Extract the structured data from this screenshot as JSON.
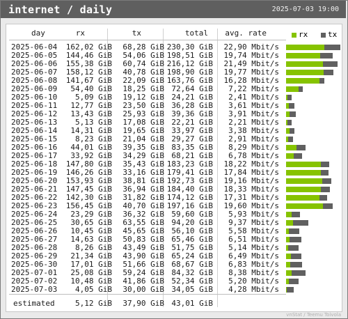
{
  "header": {
    "title": "internet / daily",
    "date": "2025-07-03 19:00"
  },
  "columns": {
    "day": "day",
    "rx": "rx",
    "tx": "tx",
    "total": "total",
    "rate": "avg. rate"
  },
  "legend": {
    "rx": "rx",
    "tx": "tx"
  },
  "colors": {
    "rx": "#86c300",
    "tx": "#606060"
  },
  "rows": [
    {
      "day": "2025-06-04",
      "rx": "162,02 GiB",
      "tx": "68,28 GiB",
      "total": "230,30 GiB",
      "rate": "22,90 Mbit/s",
      "rx_val": 162.02,
      "tx_val": 68.28
    },
    {
      "day": "2025-06-05",
      "rx": "144,46 GiB",
      "tx": "54,06 GiB",
      "total": "198,51 GiB",
      "rate": "19,74 Mbit/s",
      "rx_val": 144.46,
      "tx_val": 54.06
    },
    {
      "day": "2025-06-06",
      "rx": "155,38 GiB",
      "tx": "60,74 GiB",
      "total": "216,12 GiB",
      "rate": "21,49 Mbit/s",
      "rx_val": 155.38,
      "tx_val": 60.74
    },
    {
      "day": "2025-06-07",
      "rx": "158,12 GiB",
      "tx": "40,78 GiB",
      "total": "198,90 GiB",
      "rate": "19,77 Mbit/s",
      "rx_val": 158.12,
      "tx_val": 40.78
    },
    {
      "day": "2025-06-08",
      "rx": "141,67 GiB",
      "tx": "22,09 GiB",
      "total": "163,76 GiB",
      "rate": "16,28 Mbit/s",
      "rx_val": 141.67,
      "tx_val": 22.09
    },
    {
      "day": "2025-06-09",
      "rx": "54,40 GiB",
      "tx": "18,25 GiB",
      "total": "72,64 GiB",
      "rate": "7,22 Mbit/s",
      "rx_val": 54.4,
      "tx_val": 18.25
    },
    {
      "day": "2025-06-10",
      "rx": "5,09 GiB",
      "tx": "19,12 GiB",
      "total": "24,21 GiB",
      "rate": "2,41 Mbit/s",
      "rx_val": 5.09,
      "tx_val": 19.12
    },
    {
      "day": "2025-06-11",
      "rx": "12,77 GiB",
      "tx": "23,50 GiB",
      "total": "36,28 GiB",
      "rate": "3,61 Mbit/s",
      "rx_val": 12.77,
      "tx_val": 23.5
    },
    {
      "day": "2025-06-12",
      "rx": "13,43 GiB",
      "tx": "25,93 GiB",
      "total": "39,36 GiB",
      "rate": "3,91 Mbit/s",
      "rx_val": 13.43,
      "tx_val": 25.93
    },
    {
      "day": "2025-06-13",
      "rx": "5,13 GiB",
      "tx": "17,08 GiB",
      "total": "22,21 GiB",
      "rate": "2,21 Mbit/s",
      "rx_val": 5.13,
      "tx_val": 17.08
    },
    {
      "day": "2025-06-14",
      "rx": "14,31 GiB",
      "tx": "19,65 GiB",
      "total": "33,97 GiB",
      "rate": "3,38 Mbit/s",
      "rx_val": 14.31,
      "tx_val": 19.65
    },
    {
      "day": "2025-06-15",
      "rx": "8,23 GiB",
      "tx": "21,04 GiB",
      "total": "29,27 GiB",
      "rate": "2,91 Mbit/s",
      "rx_val": 8.23,
      "tx_val": 21.04
    },
    {
      "day": "2025-06-16",
      "rx": "44,01 GiB",
      "tx": "39,35 GiB",
      "total": "83,35 GiB",
      "rate": "8,29 Mbit/s",
      "rx_val": 44.01,
      "tx_val": 39.35
    },
    {
      "day": "2025-06-17",
      "rx": "33,92 GiB",
      "tx": "34,29 GiB",
      "total": "68,21 GiB",
      "rate": "6,78 Mbit/s",
      "rx_val": 33.92,
      "tx_val": 34.29
    },
    {
      "day": "2025-06-18",
      "rx": "147,80 GiB",
      "tx": "35,43 GiB",
      "total": "183,23 GiB",
      "rate": "18,22 Mbit/s",
      "rx_val": 147.8,
      "tx_val": 35.43
    },
    {
      "day": "2025-06-19",
      "rx": "146,26 GiB",
      "tx": "33,16 GiB",
      "total": "179,41 GiB",
      "rate": "17,84 Mbit/s",
      "rx_val": 146.26,
      "tx_val": 33.16
    },
    {
      "day": "2025-06-20",
      "rx": "153,93 GiB",
      "tx": "38,81 GiB",
      "total": "192,73 GiB",
      "rate": "19,16 Mbit/s",
      "rx_val": 153.93,
      "tx_val": 38.81
    },
    {
      "day": "2025-06-21",
      "rx": "147,45 GiB",
      "tx": "36,94 GiB",
      "total": "184,40 GiB",
      "rate": "18,33 Mbit/s",
      "rx_val": 147.45,
      "tx_val": 36.94
    },
    {
      "day": "2025-06-22",
      "rx": "142,30 GiB",
      "tx": "31,82 GiB",
      "total": "174,12 GiB",
      "rate": "17,31 Mbit/s",
      "rx_val": 142.3,
      "tx_val": 31.82
    },
    {
      "day": "2025-06-23",
      "rx": "156,45 GiB",
      "tx": "40,70 GiB",
      "total": "197,16 GiB",
      "rate": "19,60 Mbit/s",
      "rx_val": 156.45,
      "tx_val": 40.7
    },
    {
      "day": "2025-06-24",
      "rx": "23,29 GiB",
      "tx": "36,32 GiB",
      "total": "59,60 GiB",
      "rate": "5,93 Mbit/s",
      "rx_val": 23.29,
      "tx_val": 36.32
    },
    {
      "day": "2025-06-25",
      "rx": "30,65 GiB",
      "tx": "63,55 GiB",
      "total": "94,20 GiB",
      "rate": "9,37 Mbit/s",
      "rx_val": 30.65,
      "tx_val": 63.55
    },
    {
      "day": "2025-06-26",
      "rx": "10,45 GiB",
      "tx": "45,65 GiB",
      "total": "56,10 GiB",
      "rate": "5,58 Mbit/s",
      "rx_val": 10.45,
      "tx_val": 45.65
    },
    {
      "day": "2025-06-27",
      "rx": "14,63 GiB",
      "tx": "50,83 GiB",
      "total": "65,46 GiB",
      "rate": "6,51 Mbit/s",
      "rx_val": 14.63,
      "tx_val": 50.83
    },
    {
      "day": "2025-06-28",
      "rx": "8,26 GiB",
      "tx": "43,49 GiB",
      "total": "51,75 GiB",
      "rate": "5,14 Mbit/s",
      "rx_val": 8.26,
      "tx_val": 43.49
    },
    {
      "day": "2025-06-29",
      "rx": "21,34 GiB",
      "tx": "43,90 GiB",
      "total": "65,24 GiB",
      "rate": "6,49 Mbit/s",
      "rx_val": 21.34,
      "tx_val": 43.9
    },
    {
      "day": "2025-06-30",
      "rx": "17,01 GiB",
      "tx": "51,66 GiB",
      "total": "68,67 GiB",
      "rate": "6,83 Mbit/s",
      "rx_val": 17.01,
      "tx_val": 51.66
    },
    {
      "day": "2025-07-01",
      "rx": "25,08 GiB",
      "tx": "59,24 GiB",
      "total": "84,32 GiB",
      "rate": "8,38 Mbit/s",
      "rx_val": 25.08,
      "tx_val": 59.24
    },
    {
      "day": "2025-07-02",
      "rx": "10,48 GiB",
      "tx": "41,86 GiB",
      "total": "52,34 GiB",
      "rate": "5,20 Mbit/s",
      "rx_val": 10.48,
      "tx_val": 41.86
    },
    {
      "day": "2025-07-03",
      "rx": "4,05 GiB",
      "tx": "30,00 GiB",
      "total": "34,05 GiB",
      "rate": "4,28 Mbit/s",
      "rx_val": 4.05,
      "tx_val": 30.0
    }
  ],
  "estimated": {
    "label": "estimated",
    "rx": "5,12 GiB",
    "tx": "37,90 GiB",
    "total": "43,01 GiB"
  },
  "footer": "vnStat / Teemu Toivola"
}
